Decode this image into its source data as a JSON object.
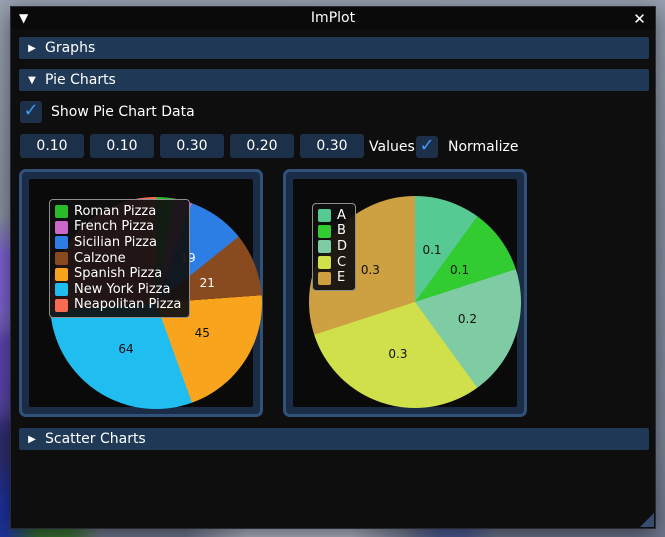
{
  "window": {
    "title": "ImPlot",
    "collapse_icon": "▼",
    "close_icon": "✕"
  },
  "sections": {
    "graphs": {
      "label": "Graphs",
      "arrow": "▶",
      "expanded": false
    },
    "pie": {
      "label": "Pie Charts",
      "arrow": "▼",
      "expanded": true
    },
    "scatter": {
      "label": "Scatter Charts",
      "arrow": "▶",
      "expanded": false
    }
  },
  "controls": {
    "show_data_checkbox": {
      "label": "Show Pie Chart Data",
      "checked": true,
      "check_glyph": "✓"
    },
    "value_fields": [
      "0.10",
      "0.10",
      "0.30",
      "0.20",
      "0.30"
    ],
    "values_label": "Values",
    "normalize_checkbox": {
      "label": "Normalize",
      "checked": true,
      "check_glyph": "✓"
    }
  },
  "colors": {
    "accent_checkmark": "#4296fa",
    "header_bg": "#1f3956",
    "frame_bg": "#1d3049",
    "plot_frame_fill": "#1a2c46",
    "plot_frame_border": "#30517a",
    "plot_canvas_bg": "#0a0a0b"
  },
  "chart_data": [
    {
      "type": "pie",
      "title": "",
      "legend_position": "top-left-inside",
      "start_angle_deg": 90,
      "direction": "clockwise",
      "series": [
        {
          "label": "Roman Pizza",
          "value": 6,
          "value_label": "",
          "estimated": true,
          "color": "#2abb2a",
          "text_color": "#111111"
        },
        {
          "label": "French Pizza",
          "value": 6,
          "value_label": "",
          "estimated": true,
          "color": "#c968c9",
          "text_color": "#111111"
        },
        {
          "label": "Sicilian Pizza",
          "value": 19,
          "value_label": "19",
          "estimated": false,
          "color": "#2d7ee4",
          "text_color": "#ffffff"
        },
        {
          "label": "Calzone",
          "value": 21,
          "value_label": "21",
          "estimated": false,
          "color": "#8a4a1f",
          "text_color": "#ffffff"
        },
        {
          "label": "Spanish Pizza",
          "value": 45,
          "value_label": "45",
          "estimated": false,
          "color": "#f8a41c",
          "text_color": "#111111"
        },
        {
          "label": "New York Pizza",
          "value": 64,
          "value_label": "64",
          "estimated": false,
          "color": "#20bdf0",
          "text_color": "#111111"
        },
        {
          "label": "Neapolitan Pizza",
          "value": 57,
          "value_label": "",
          "estimated": true,
          "color": "#f76b52",
          "text_color": "#ffffff"
        }
      ]
    },
    {
      "type": "pie",
      "title": "",
      "legend_position": "top-left-inside",
      "start_angle_deg": 90,
      "direction": "clockwise",
      "series": [
        {
          "label": "A",
          "value": 0.1,
          "value_label": "0.1",
          "estimated": false,
          "color": "#57c993",
          "text_color": "#111111"
        },
        {
          "label": "B",
          "value": 0.1,
          "value_label": "0.1",
          "estimated": false,
          "color": "#32cb32",
          "text_color": "#111111"
        },
        {
          "label": "D",
          "value": 0.2,
          "value_label": "0.2",
          "estimated": false,
          "color": "#7fcba4",
          "text_color": "#111111"
        },
        {
          "label": "C",
          "value": 0.3,
          "value_label": "0.3",
          "estimated": false,
          "color": "#cfe04a",
          "text_color": "#111111"
        },
        {
          "label": "E",
          "value": 0.3,
          "value_label": "0.3",
          "estimated": false,
          "color": "#cda041",
          "text_color": "#111111"
        }
      ]
    }
  ]
}
